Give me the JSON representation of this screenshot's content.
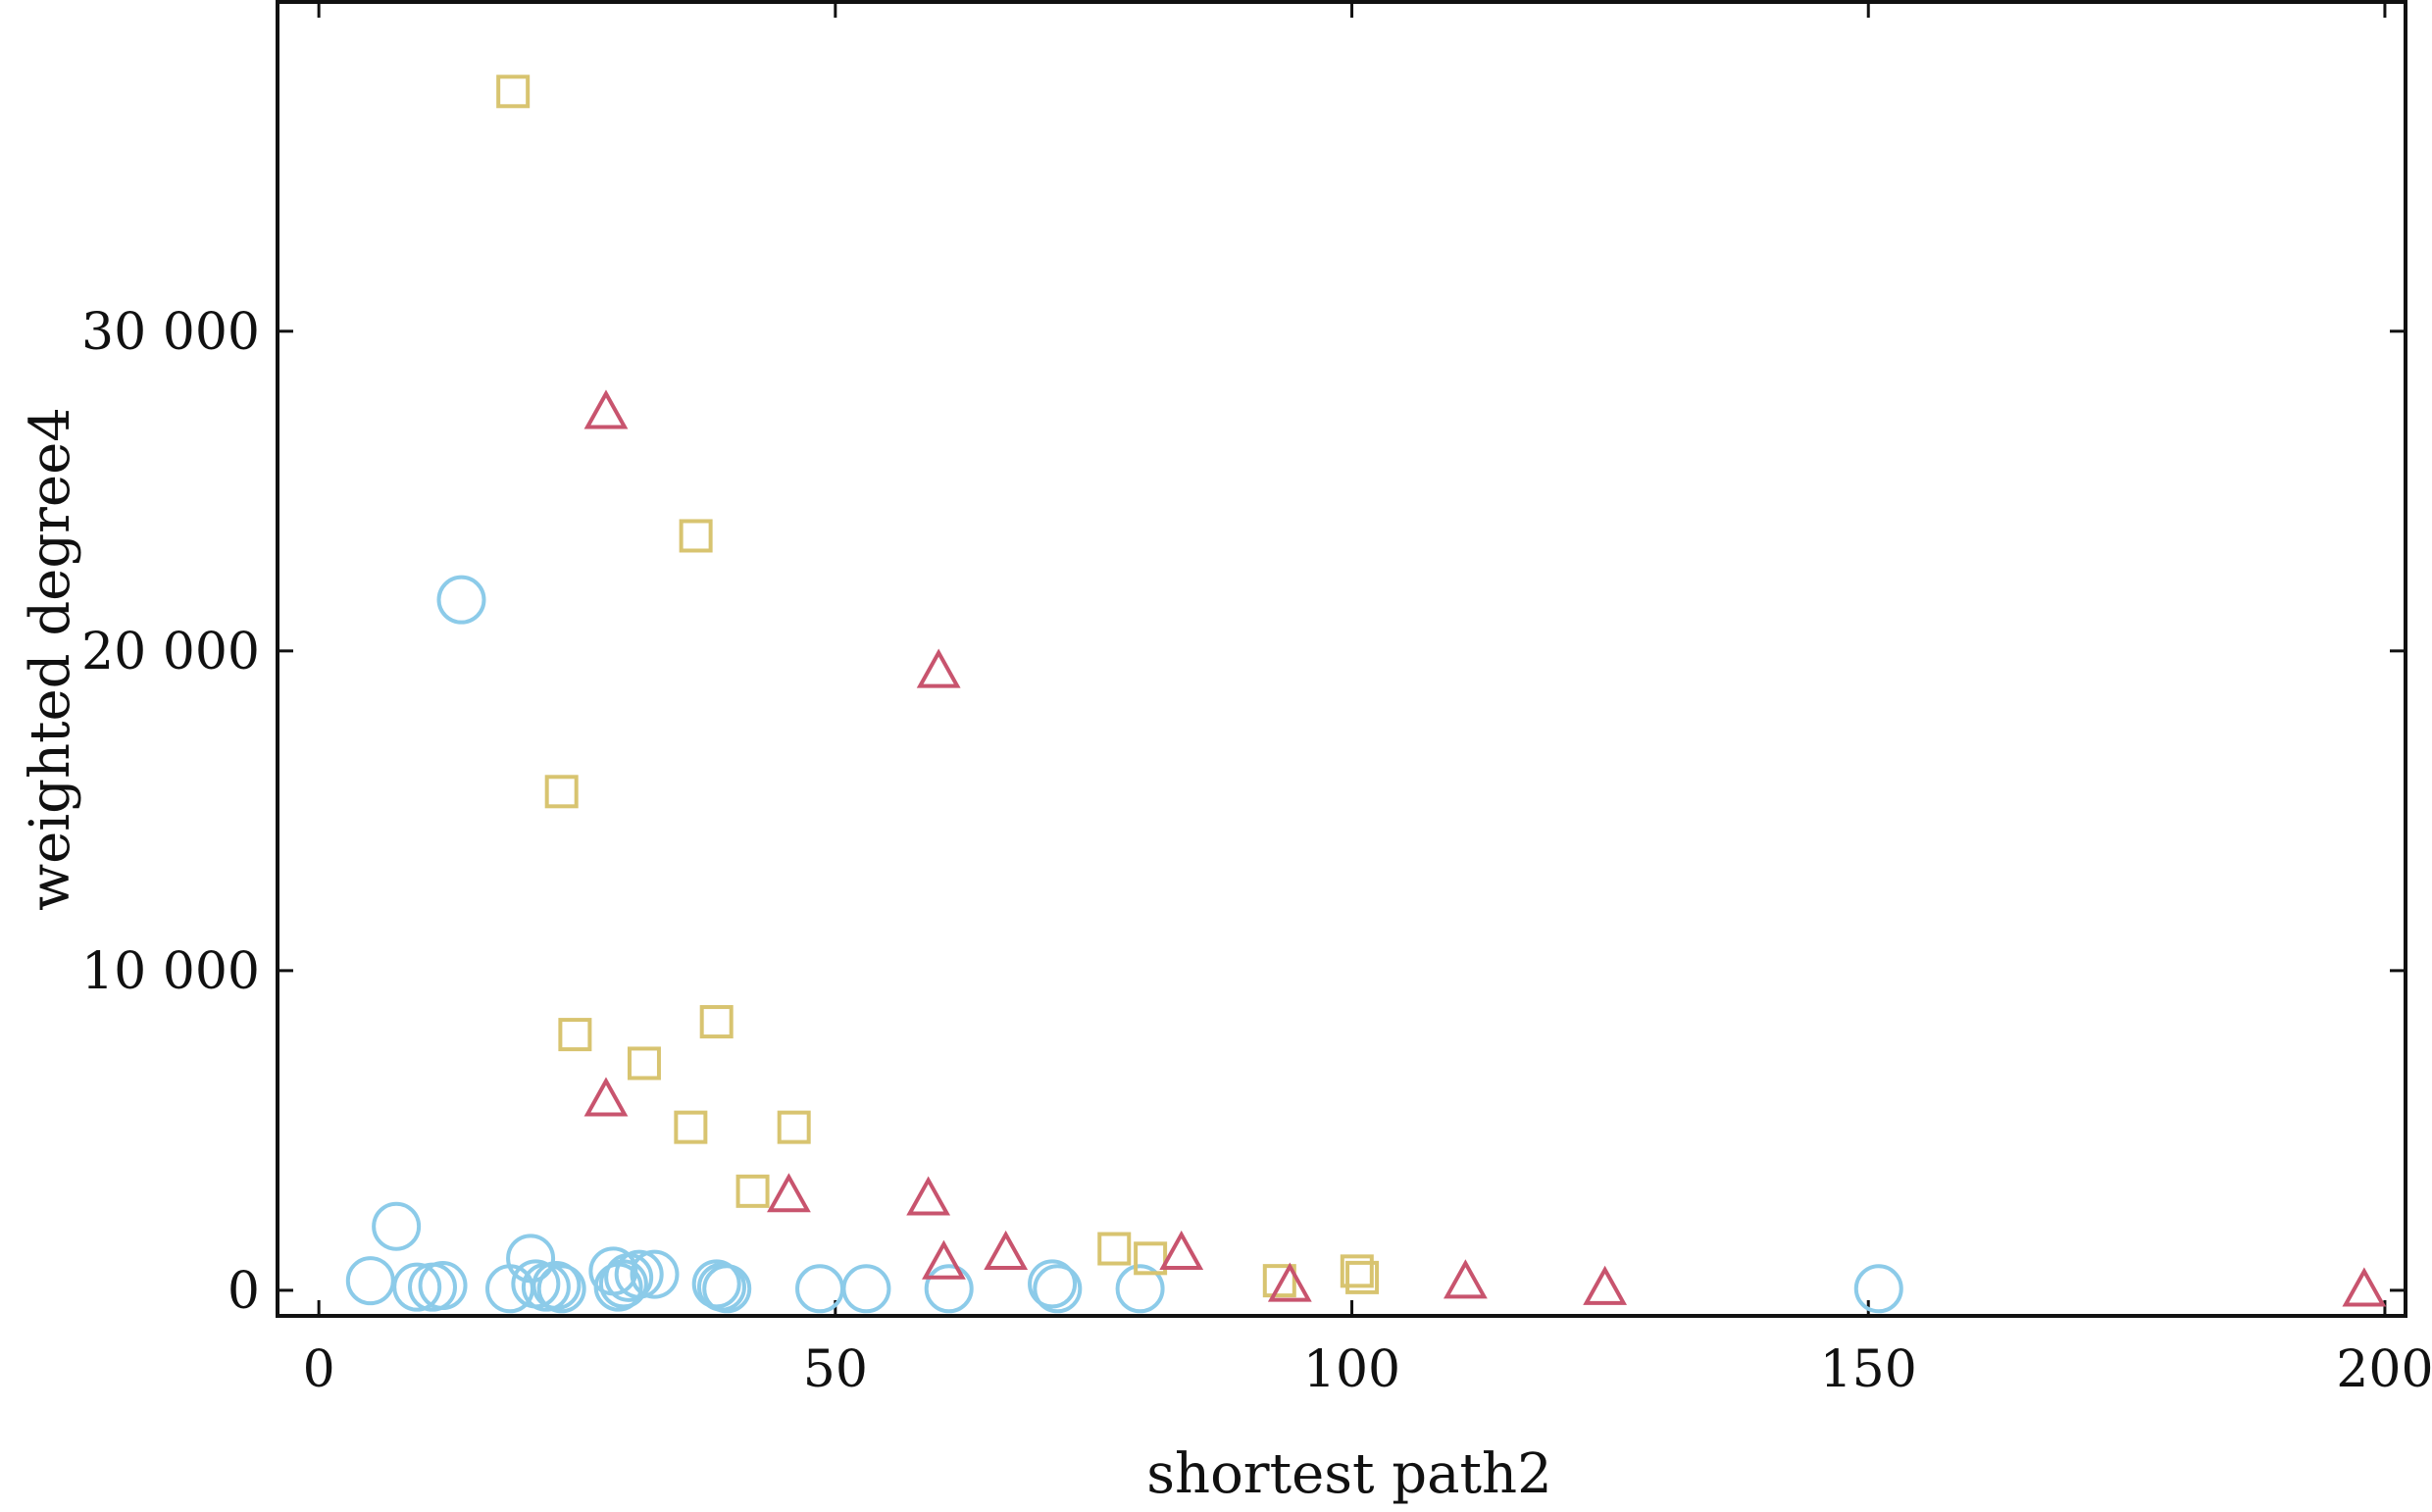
{
  "chart_data": {
    "type": "scatter",
    "xlabel": "shortest path2",
    "ylabel": "weighted degree4",
    "xlim": [
      -4,
      202
    ],
    "ylim": [
      -800,
      40300
    ],
    "x_ticks": [
      {
        "value": 0,
        "label": "0"
      },
      {
        "value": 50,
        "label": "50"
      },
      {
        "value": 100,
        "label": "100"
      },
      {
        "value": 150,
        "label": "150"
      },
      {
        "value": 200,
        "label": "200"
      }
    ],
    "y_ticks": [
      {
        "value": 0,
        "label": "0"
      },
      {
        "value": 10000,
        "label": "10 000"
      },
      {
        "value": 20000,
        "label": "20 000"
      },
      {
        "value": 30000,
        "label": "30 000"
      }
    ],
    "grid": false,
    "series": [
      {
        "marker": "circle",
        "color": "#8ccbe9",
        "points": [
          [
            5,
            300
          ],
          [
            7.5,
            2000
          ],
          [
            9.5,
            100
          ],
          [
            11,
            100
          ],
          [
            12,
            150
          ],
          [
            13.8,
            21600
          ],
          [
            18.5,
            50
          ],
          [
            20.5,
            1000
          ],
          [
            21,
            200
          ],
          [
            22,
            100
          ],
          [
            23,
            150
          ],
          [
            23.5,
            50
          ],
          [
            28.5,
            600
          ],
          [
            29,
            100
          ],
          [
            29.5,
            200
          ],
          [
            30,
            400
          ],
          [
            31,
            500
          ],
          [
            32.5,
            500
          ],
          [
            38.5,
            200
          ],
          [
            39,
            100
          ],
          [
            39.5,
            50
          ],
          [
            48.5,
            50
          ],
          [
            53,
            50
          ],
          [
            61,
            50
          ],
          [
            71,
            200
          ],
          [
            71.5,
            50
          ],
          [
            79.5,
            50
          ],
          [
            151,
            50
          ]
        ]
      },
      {
        "marker": "square",
        "color": "#d8c470",
        "points": [
          [
            18.8,
            37500
          ],
          [
            23.5,
            15600
          ],
          [
            24.8,
            8000
          ],
          [
            31.5,
            7100
          ],
          [
            36,
            5100
          ],
          [
            36.5,
            23600
          ],
          [
            38.5,
            8400
          ],
          [
            42,
            3100
          ],
          [
            46,
            5100
          ],
          [
            77,
            1300
          ],
          [
            80.5,
            1000
          ],
          [
            93,
            300
          ],
          [
            100.5,
            600
          ],
          [
            101,
            400
          ]
        ]
      },
      {
        "marker": "triangle",
        "color": "#c8546e",
        "points": [
          [
            27.8,
            27400
          ],
          [
            27.8,
            5900
          ],
          [
            45.5,
            2900
          ],
          [
            59,
            2800
          ],
          [
            60,
            19300
          ],
          [
            60.5,
            800
          ],
          [
            66.5,
            1100
          ],
          [
            83.5,
            1100
          ],
          [
            94,
            100
          ],
          [
            111,
            200
          ],
          [
            124.5,
            0
          ],
          [
            198,
            -50
          ]
        ]
      }
    ]
  }
}
